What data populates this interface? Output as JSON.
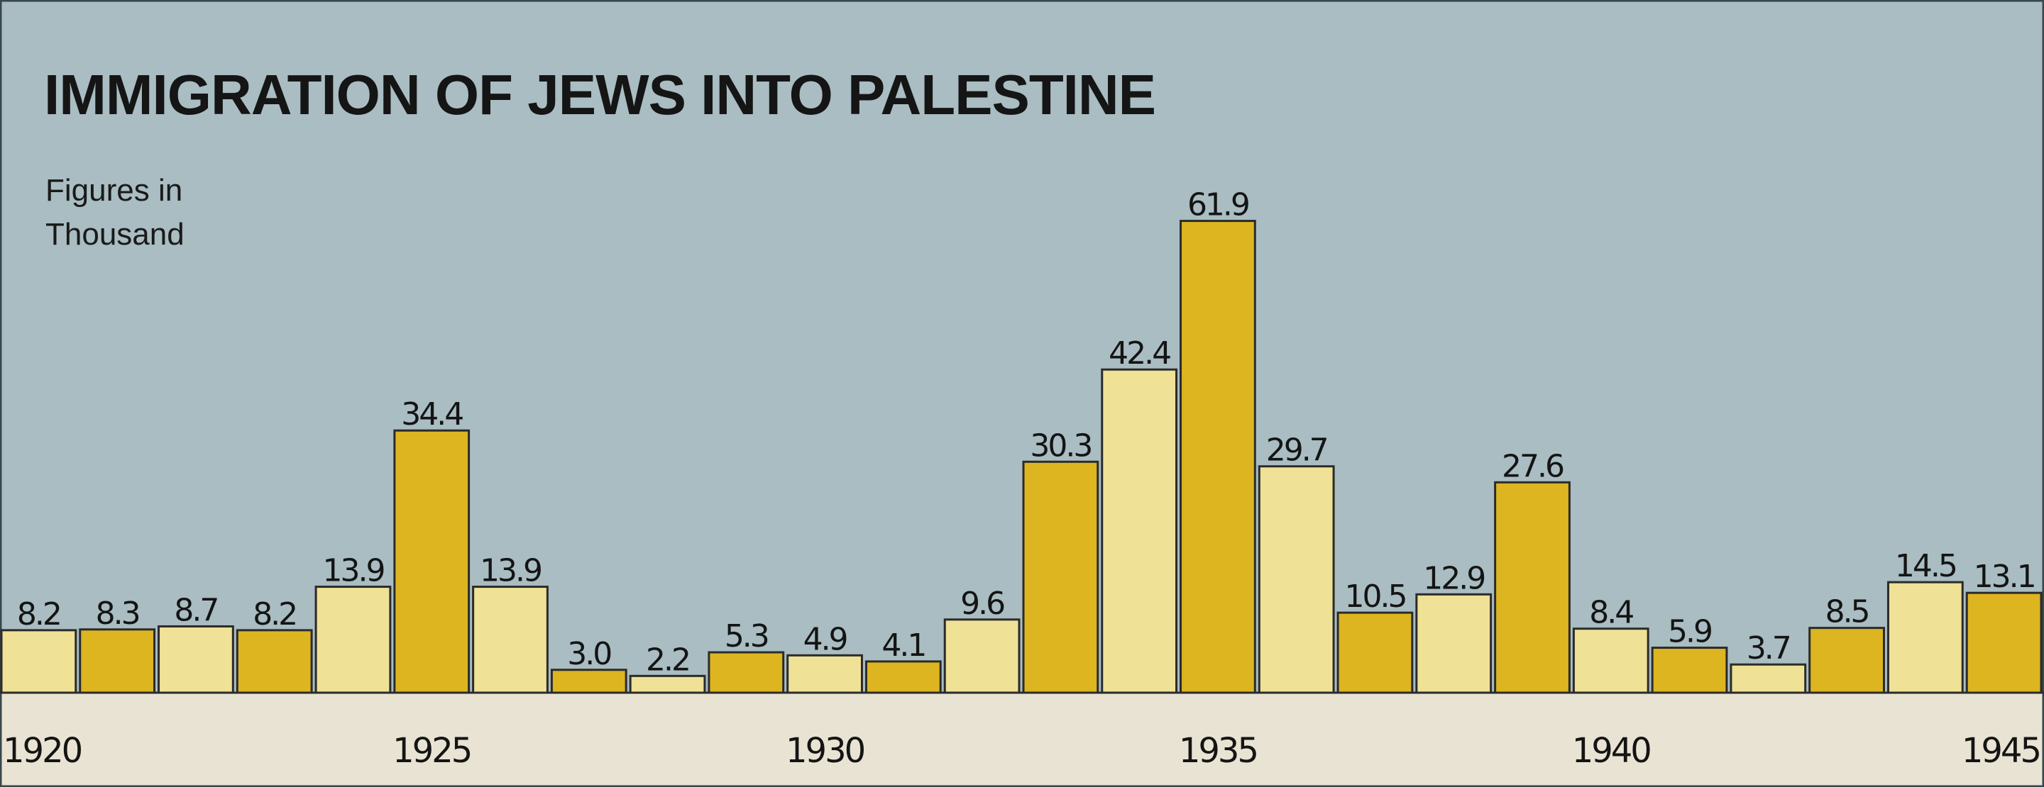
{
  "chart_data": {
    "type": "bar",
    "title": "IMMIGRATION OF JEWS INTO PALESTINE",
    "subtitle": "Figures in Thousand",
    "categories": [
      "1920",
      null,
      null,
      null,
      null,
      "1925",
      null,
      null,
      null,
      null,
      "1930",
      null,
      null,
      null,
      null,
      "1935",
      null,
      null,
      null,
      null,
      "1940",
      null,
      null,
      null,
      null,
      "1945"
    ],
    "values": [
      8.2,
      8.3,
      8.7,
      8.2,
      13.9,
      34.4,
      13.9,
      3.0,
      2.2,
      5.3,
      4.9,
      4.1,
      9.6,
      30.3,
      42.4,
      61.9,
      29.7,
      10.5,
      12.9,
      27.6,
      8.4,
      5.9,
      3.7,
      8.5,
      14.5,
      13.1
    ],
    "value_labels": [
      "8.2",
      "8.3",
      "8.7",
      "8.2",
      "13.9",
      "34.4",
      "13.9",
      "3.0",
      "2.2",
      "5.3",
      "4.9",
      "4.1",
      "9.6",
      "30.3",
      "42.4",
      "61.9",
      "29.7",
      "10.5",
      "12.9",
      "27.6",
      "8.4",
      "5.9",
      "3.7",
      "8.5",
      "14.5",
      "13.1"
    ],
    "colors": [
      "#efe196",
      "#dcb520",
      "#efe196",
      "#dcb520",
      "#efe196",
      "#dcb520",
      "#efe196",
      "#dcb520",
      "#efe196",
      "#dcb520",
      "#efe196",
      "#dcb520",
      "#efe196",
      "#dcb520",
      "#efe196",
      "#dcb520",
      "#efe196",
      "#dcb520",
      "#efe196",
      "#dcb520",
      "#efe196",
      "#dcb520",
      "#efe196",
      "#dcb520",
      "#efe196",
      "#dcb520"
    ],
    "ylim": [
      0,
      88
    ],
    "grid": false
  }
}
